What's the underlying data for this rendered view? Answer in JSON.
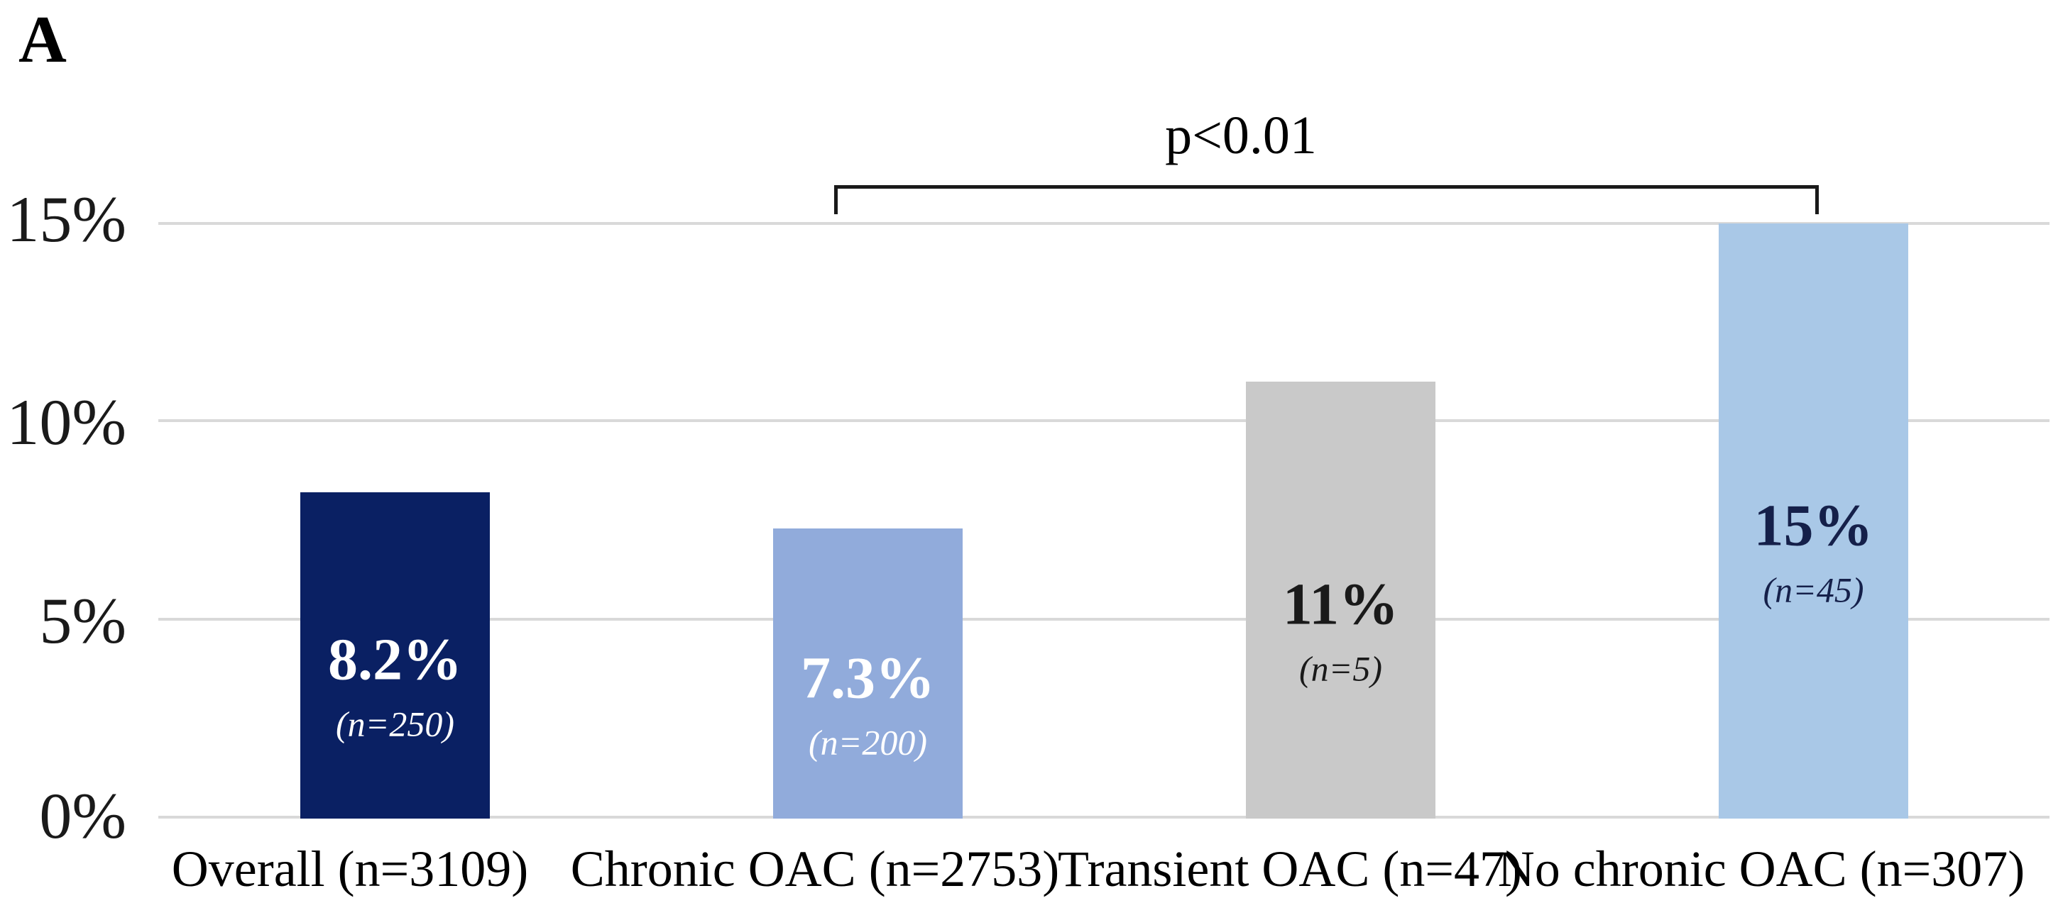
{
  "panel_label": "A",
  "y_axis": {
    "tick_labels": [
      "15%",
      "10%",
      "5%",
      "0%"
    ],
    "tick_values_pct": [
      15,
      10,
      5,
      0
    ]
  },
  "chart_data": {
    "type": "bar",
    "title": "",
    "xlabel": "",
    "ylabel": "",
    "ylim": [
      0,
      15
    ],
    "grid": true,
    "categories": [
      "Overall (n=3109)",
      "Chronic OAC (n=2753)",
      "Transient OAC (n=47)",
      "No chronic OAC (n=307)"
    ],
    "values": [
      8.2,
      7.3,
      11,
      15
    ],
    "bar_colors": [
      "#0a2063",
      "#91abdb",
      "#c9c9c9",
      "#a9c8e7"
    ],
    "bar_labels": [
      {
        "pct": "8.2%",
        "n": "(n=250)",
        "text_color": "#ffffff"
      },
      {
        "pct": "7.3%",
        "n": "(n=200)",
        "text_color": "#ffffff"
      },
      {
        "pct": "11%",
        "n": "(n=5)",
        "text_color": "#1a1a1a"
      },
      {
        "pct": "15%",
        "n": "(n=45)",
        "text_color": "#15204a"
      }
    ],
    "significance_bracket": {
      "label": "p<0.01",
      "from_category_index": 1,
      "to_category_index": 3
    }
  },
  "colors": {
    "background": "#ffffff",
    "gridline": "#d9d9d9",
    "bracket": "#1a1a1a",
    "axis_text": "#1a1a1a"
  }
}
